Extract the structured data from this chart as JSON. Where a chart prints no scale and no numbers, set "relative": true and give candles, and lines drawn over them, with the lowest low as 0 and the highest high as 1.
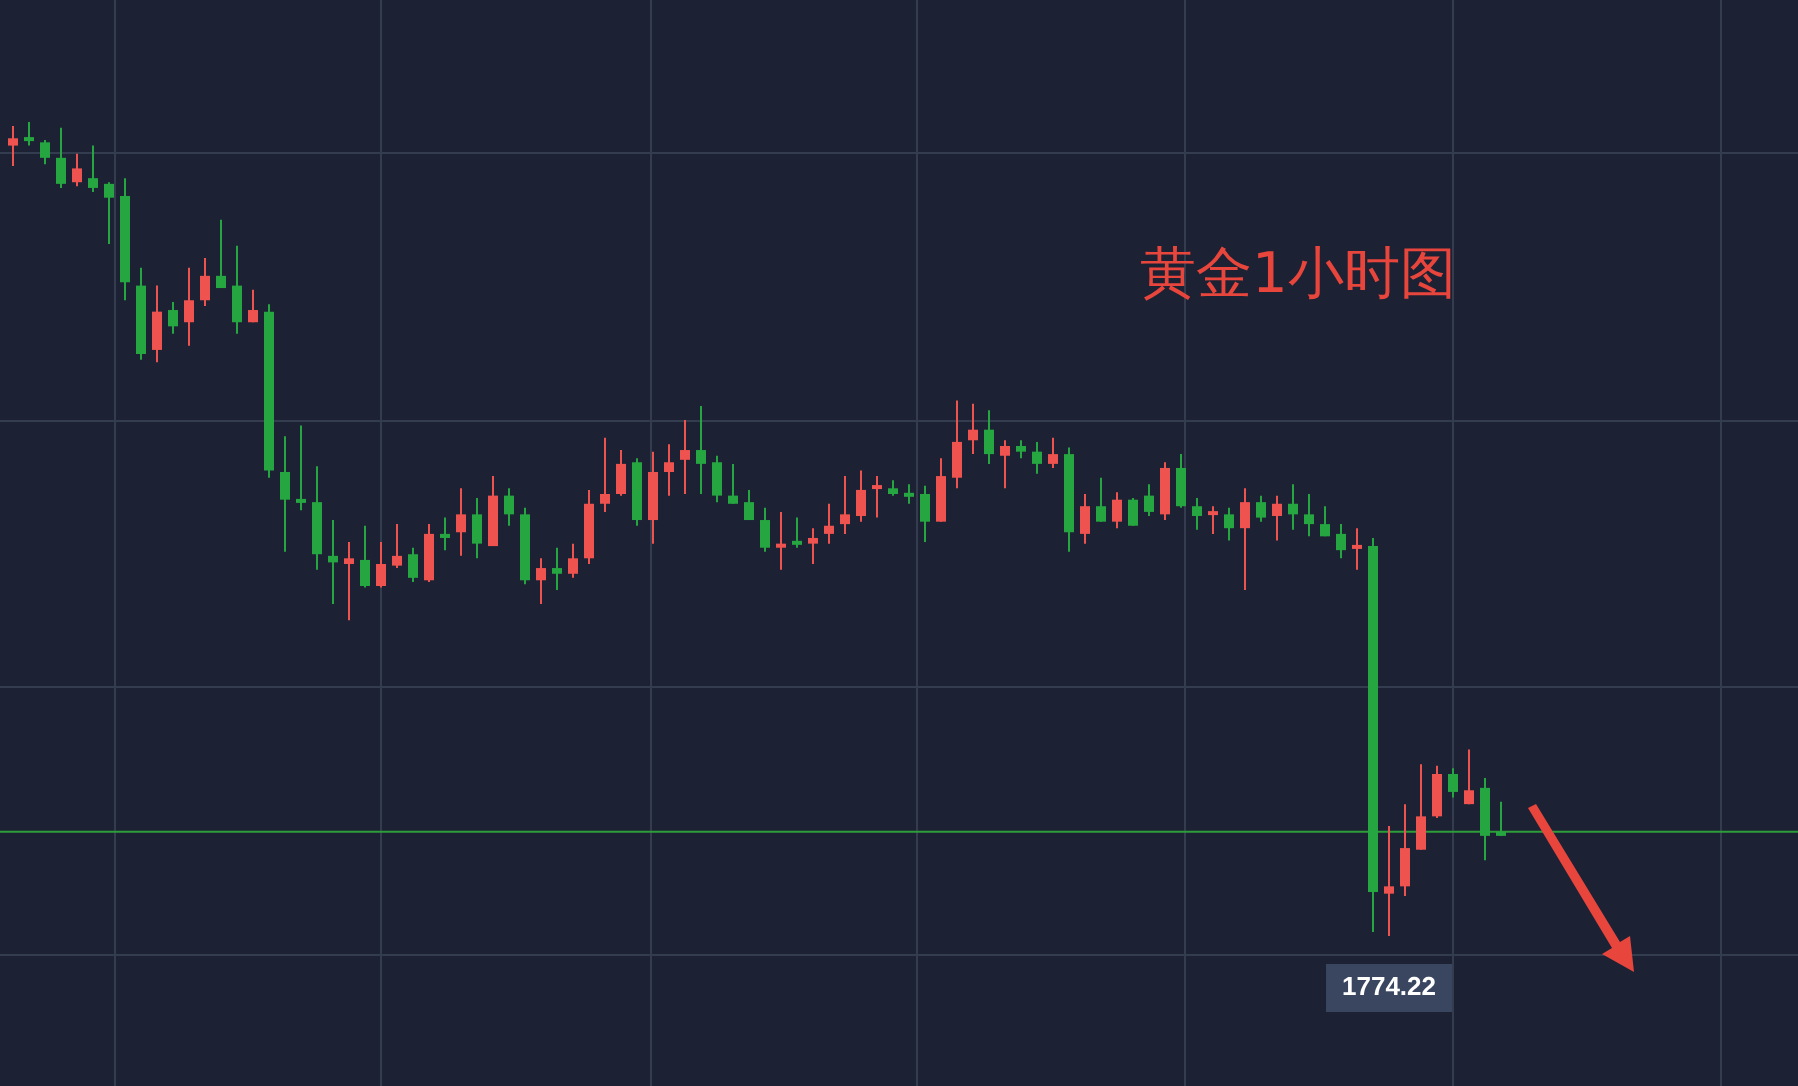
{
  "chart_data": {
    "type": "candlestick",
    "title": "黄金1小时图",
    "relative": true,
    "grid": true,
    "legend": false,
    "categories": [
      null,
      null,
      null,
      null,
      null,
      null,
      null,
      null,
      null,
      null,
      null,
      null,
      null,
      null,
      null,
      null,
      null,
      null,
      null,
      null,
      null,
      null,
      null,
      null,
      null,
      null,
      null,
      null,
      null,
      null,
      null,
      null,
      null,
      null,
      null,
      null,
      null,
      null,
      null,
      null,
      null,
      null,
      null,
      null,
      null,
      null,
      null,
      null,
      null,
      null,
      null,
      null,
      null,
      null,
      null,
      null,
      null,
      null,
      null,
      null,
      null,
      null,
      null,
      null,
      null,
      null,
      null,
      null,
      null,
      null,
      null,
      null,
      null,
      null,
      null,
      null,
      null,
      null,
      null,
      null,
      null,
      null,
      null,
      null,
      null,
      null,
      null,
      null,
      null,
      null,
      null,
      null,
      null,
      null
    ],
    "ohlc": [
      [
        0.971,
        0.995,
        0.946,
        0.98
      ],
      [
        0.98,
        1,
        0.971,
        0.978
      ],
      [
        0.975,
        0.978,
        0.948,
        0.956
      ],
      [
        0.956,
        0.993,
        0.919,
        0.924
      ],
      [
        0.926,
        0.961,
        0.921,
        0.943
      ],
      [
        0.931,
        0.971,
        0.914,
        0.919
      ],
      [
        0.924,
        0.926,
        0.85,
        0.907
      ],
      [
        0.909,
        0.931,
        0.781,
        0.803
      ],
      [
        0.799,
        0.821,
        0.708,
        0.715
      ],
      [
        0.72,
        0.799,
        0.705,
        0.767
      ],
      [
        0.769,
        0.779,
        0.74,
        0.749
      ],
      [
        0.754,
        0.821,
        0.725,
        0.781
      ],
      [
        0.781,
        0.833,
        0.774,
        0.811
      ],
      [
        0.811,
        0.88,
        0.796,
        0.796
      ],
      [
        0.799,
        0.848,
        0.74,
        0.754
      ],
      [
        0.754,
        0.794,
        0.754,
        0.769
      ],
      [
        0.767,
        0.776,
        0.563,
        0.572
      ],
      [
        0.57,
        0.614,
        0.472,
        0.536
      ],
      [
        0.536,
        0.627,
        0.523,
        0.533
      ],
      [
        0.533,
        0.577,
        0.45,
        0.469
      ],
      [
        0.467,
        0.511,
        0.408,
        0.459
      ],
      [
        0.457,
        0.484,
        0.388,
        0.464
      ],
      [
        0.462,
        0.504,
        0.428,
        0.43
      ],
      [
        0.43,
        0.484,
        0.428,
        0.457
      ],
      [
        0.455,
        0.506,
        0.452,
        0.467
      ],
      [
        0.469,
        0.477,
        0.435,
        0.44
      ],
      [
        0.437,
        0.506,
        0.435,
        0.494
      ],
      [
        0.494,
        0.514,
        0.474,
        0.489
      ],
      [
        0.496,
        0.55,
        0.467,
        0.518
      ],
      [
        0.518,
        0.538,
        0.464,
        0.482
      ],
      [
        0.479,
        0.565,
        0.479,
        0.541
      ],
      [
        0.541,
        0.55,
        0.504,
        0.518
      ],
      [
        0.518,
        0.526,
        0.432,
        0.437
      ],
      [
        0.437,
        0.464,
        0.408,
        0.452
      ],
      [
        0.452,
        0.477,
        0.425,
        0.445
      ],
      [
        0.445,
        0.482,
        0.44,
        0.464
      ],
      [
        0.464,
        0.548,
        0.457,
        0.531
      ],
      [
        0.531,
        0.612,
        0.521,
        0.543
      ],
      [
        0.543,
        0.597,
        0.541,
        0.58
      ],
      [
        0.582,
        0.587,
        0.504,
        0.511
      ],
      [
        0.511,
        0.595,
        0.482,
        0.57
      ],
      [
        0.57,
        0.604,
        0.541,
        0.582
      ],
      [
        0.585,
        0.634,
        0.543,
        0.597
      ],
      [
        0.597,
        0.651,
        0.543,
        0.58
      ],
      [
        0.582,
        0.59,
        0.533,
        0.541
      ],
      [
        0.541,
        0.58,
        0.531,
        0.531
      ],
      [
        0.533,
        0.548,
        0.511,
        0.511
      ],
      [
        0.511,
        0.526,
        0.472,
        0.477
      ],
      [
        0.477,
        0.521,
        0.45,
        0.482
      ],
      [
        0.484,
        0.514,
        0.477,
        0.482
      ],
      [
        0.482,
        0.501,
        0.457,
        0.489
      ],
      [
        0.494,
        0.531,
        0.482,
        0.504
      ],
      [
        0.506,
        0.565,
        0.494,
        0.518
      ],
      [
        0.516,
        0.572,
        0.509,
        0.548
      ],
      [
        0.55,
        0.565,
        0.514,
        0.553
      ],
      [
        0.55,
        0.56,
        0.541,
        0.543
      ],
      [
        0.543,
        0.555,
        0.531,
        0.541
      ],
      [
        0.543,
        0.553,
        0.484,
        0.509
      ],
      [
        0.509,
        0.587,
        0.509,
        0.565
      ],
      [
        0.563,
        0.658,
        0.55,
        0.607
      ],
      [
        0.609,
        0.654,
        0.592,
        0.622
      ],
      [
        0.622,
        0.646,
        0.58,
        0.592
      ],
      [
        0.59,
        0.609,
        0.55,
        0.602
      ],
      [
        0.602,
        0.609,
        0.587,
        0.595
      ],
      [
        0.595,
        0.607,
        0.568,
        0.58
      ],
      [
        0.58,
        0.612,
        0.575,
        0.592
      ],
      [
        0.592,
        0.6,
        0.472,
        0.496
      ],
      [
        0.494,
        0.543,
        0.482,
        0.528
      ],
      [
        0.528,
        0.563,
        0.509,
        0.509
      ],
      [
        0.509,
        0.545,
        0.501,
        0.536
      ],
      [
        0.536,
        0.538,
        0.504,
        0.504
      ],
      [
        0.541,
        0.555,
        0.516,
        0.521
      ],
      [
        0.518,
        0.582,
        0.511,
        0.575
      ],
      [
        0.575,
        0.592,
        0.526,
        0.528
      ],
      [
        0.528,
        0.538,
        0.499,
        0.516
      ],
      [
        0.518,
        0.528,
        0.494,
        0.521
      ],
      [
        0.518,
        0.526,
        0.486,
        0.501
      ],
      [
        0.501,
        0.55,
        0.425,
        0.533
      ],
      [
        0.533,
        0.541,
        0.509,
        0.514
      ],
      [
        0.516,
        0.541,
        0.486,
        0.531
      ],
      [
        0.531,
        0.555,
        0.499,
        0.518
      ],
      [
        0.518,
        0.543,
        0.491,
        0.506
      ],
      [
        0.506,
        0.528,
        0.491,
        0.491
      ],
      [
        0.494,
        0.506,
        0.464,
        0.474
      ],
      [
        0.477,
        0.501,
        0.45,
        0.479
      ],
      [
        0.479,
        0.489,
        0.005,
        0.054
      ],
      [
        0.052,
        0.135,
        0,
        0.061
      ],
      [
        0.061,
        0.162,
        0.049,
        0.108
      ],
      [
        0.106,
        0.211,
        0.106,
        0.147
      ],
      [
        0.147,
        0.209,
        0.145,
        0.199
      ],
      [
        0.199,
        0.206,
        0.17,
        0.177
      ],
      [
        0.162,
        0.229,
        0.162,
        0.179
      ],
      [
        0.182,
        0.194,
        0.093,
        0.123
      ],
      [
        0.128,
        0.165,
        0.123,
        0.123
      ]
    ],
    "ref_lines": [
      {
        "axis": "y",
        "value": 0.128,
        "color": "#2e9e3a"
      }
    ],
    "annotations": [
      "1774.22"
    ]
  }
}
